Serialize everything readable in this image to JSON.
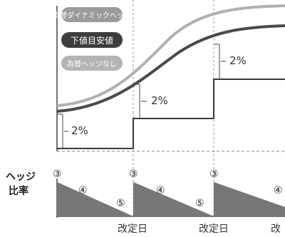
{
  "chart_data": {
    "type": "line",
    "title": "",
    "legend": {
      "placement": "top-left",
      "entries": [
        {
          "label": "為替ダイナミックヘッジ",
          "color": "#9a9a9a",
          "text_color": "#ffffff"
        },
        {
          "label": "下値目安値",
          "color": "#3d3d3d",
          "text_color": "#ffffff"
        },
        {
          "label": "為替ヘッジなし",
          "color": "#b4b4b4",
          "text_color": "#ffffff"
        }
      ]
    },
    "x_tick_labels": [
      "改定日",
      "改定日",
      "改"
    ],
    "step_labels": [
      "2%",
      "2%",
      "2%"
    ],
    "lower_panel": {
      "ylabel": "ヘッジ\n比率",
      "marker_labels": [
        "③",
        "④",
        "⑤"
      ],
      "groups": [
        {
          "markers": [
            "③",
            "④",
            "⑤"
          ]
        },
        {
          "markers": [
            "③",
            "④",
            "⑤"
          ]
        },
        {
          "markers": [
            "③",
            "④"
          ]
        }
      ]
    },
    "grid": false
  }
}
